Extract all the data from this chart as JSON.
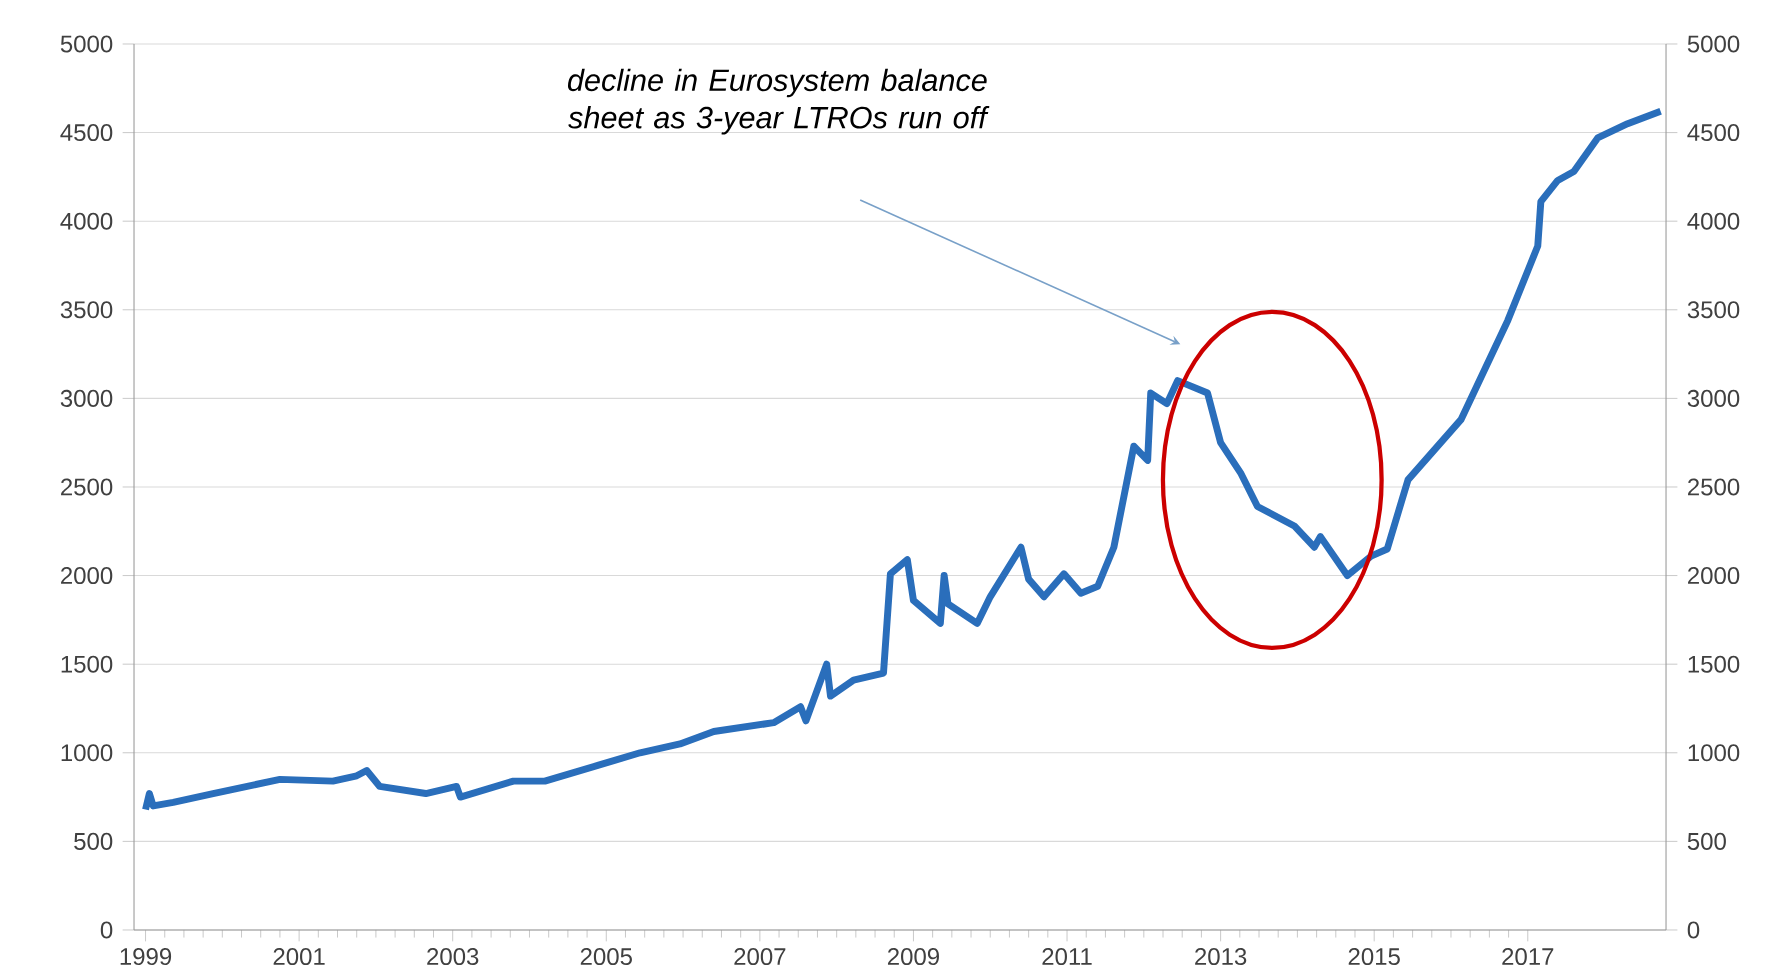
{
  "chart_data": {
    "type": "line",
    "x": [
      1999.0,
      1999.05,
      1999.1,
      1999.36,
      1999.88,
      2000.75,
      2001.44,
      2001.75,
      2001.88,
      2002.05,
      2002.65,
      2003.05,
      2003.1,
      2003.79,
      2004.2,
      2004.9,
      2005.44,
      2005.96,
      2006.4,
      2007.18,
      2007.53,
      2007.6,
      2007.87,
      2007.92,
      2008.22,
      2008.61,
      2008.7,
      2008.92,
      2009.0,
      2009.35,
      2009.4,
      2009.45,
      2009.83,
      2010.0,
      2010.4,
      2010.5,
      2010.7,
      2010.96,
      2011.18,
      2011.4,
      2011.61,
      2011.87,
      2012.05,
      2012.09,
      2012.3,
      2012.44,
      2012.83,
      2013.0,
      2013.26,
      2013.48,
      2013.96,
      2014.22,
      2014.3,
      2014.65,
      2014.96,
      2015.17,
      2015.44,
      2016.13,
      2016.74,
      2017.13,
      2017.17,
      2017.39,
      2017.6,
      2017.91,
      2018.3,
      2018.73
    ],
    "series": [
      {
        "color": "#2a6ebb",
        "values": [
          680,
          770,
          700,
          720,
          770,
          850,
          840,
          870,
          900,
          810,
          770,
          810,
          750,
          840,
          840,
          930,
          1000,
          1050,
          1120,
          1170,
          1260,
          1180,
          1500,
          1320,
          1410,
          1450,
          2010,
          2090,
          1860,
          1730,
          2000,
          1840,
          1730,
          1880,
          2160,
          1980,
          1880,
          2010,
          1900,
          1940,
          2160,
          2730,
          2650,
          3030,
          2970,
          3100,
          3030,
          2750,
          2580,
          2390,
          2280,
          2160,
          2220,
          2000,
          2110,
          2150,
          2540,
          2880,
          3440,
          3860,
          4110,
          4230,
          4280,
          4470,
          4550,
          4620
        ]
      }
    ],
    "xlim": [
      1998.85,
      2018.8
    ],
    "xticks": [
      1999,
      2001,
      2003,
      2005,
      2007,
      2009,
      2011,
      2013,
      2015,
      2017
    ],
    "ylim": [
      0,
      5000
    ],
    "yticks": [
      0,
      500,
      1000,
      1500,
      2000,
      2500,
      3000,
      3500,
      4000,
      4500,
      5000
    ],
    "y2lim": [
      0,
      5000
    ],
    "y2ticks": [
      0,
      500,
      1000,
      1500,
      2000,
      2500,
      3000,
      3500,
      4000,
      4500,
      5000
    ],
    "grid": "y",
    "line_style": "solid",
    "marker": "none",
    "annotations": [
      "decline in Eurosystem balance sheet as 3-year LTROs run off"
    ]
  }
}
